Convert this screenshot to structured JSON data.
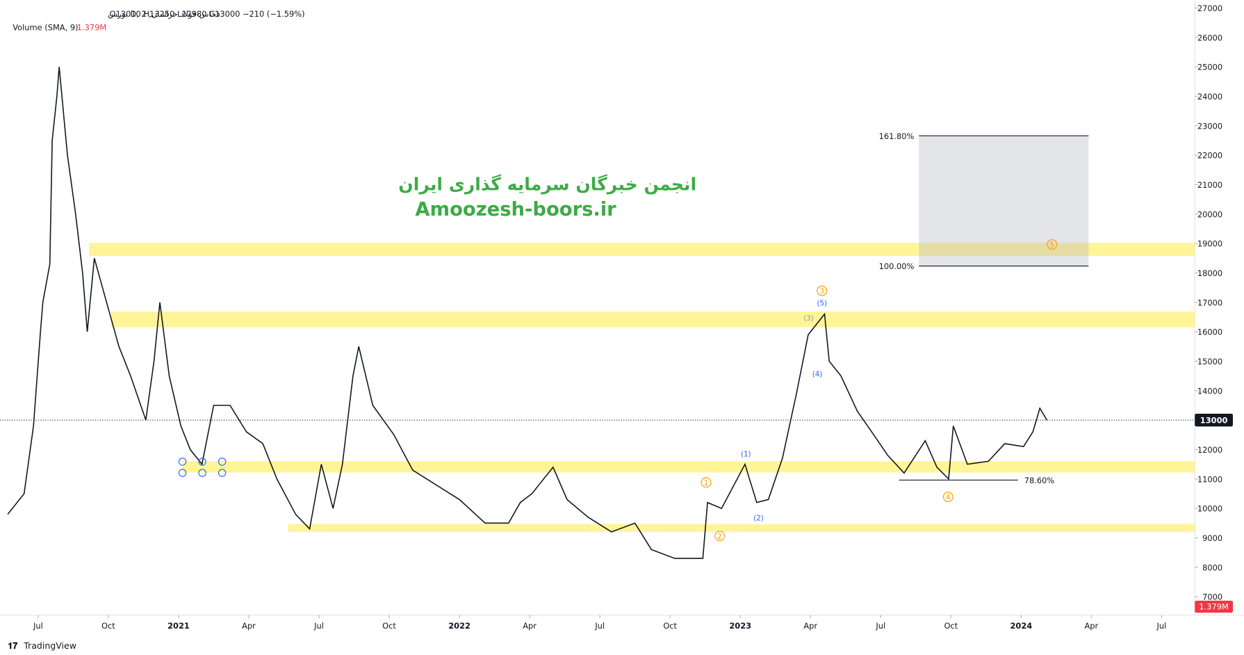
{
  "chart_data": {
    "type": "line",
    "symbol": "فخاس-فولاد خراسان, 2 ,D بورس",
    "ohlc": "O13010  H13250  L12980  C13000  −210 (−1.59%)",
    "volume_label": "Volume (SMA, 9)",
    "volume_value": "1.379M",
    "watermark": [
      "انجمن خبرگان سرمایه گذاری ایران",
      "Amoozesh-boors.ir"
    ],
    "footer": "TradingView",
    "color": "#131722",
    "x": [
      4.7,
      5.4,
      5.8,
      6.1,
      6.2,
      6.5,
      6.6,
      6.8,
      6.9,
      7.25,
      7.6,
      7.9,
      8.1,
      8.4,
      8.75,
      9.1,
      9.45,
      9.95,
      10.6,
      10.95,
      11.2,
      11.6,
      12.1,
      12.5,
      13.0,
      13.5,
      14.2,
      14.9,
      15.6,
      16.2,
      17.0,
      17.6,
      18.1,
      18.6,
      19.0,
      19.45,
      19.7,
      20.3,
      21.2,
      22.0,
      23.0,
      24.0,
      25.1,
      26.1,
      26.6,
      27.1,
      28.0,
      28.6,
      29.5,
      30.5,
      31.5,
      32.2,
      33.2,
      34.4,
      34.6,
      35.2,
      36.2,
      36.7,
      37.2,
      37.8,
      38.4,
      38.9,
      39.6,
      39.8,
      40.3,
      41.0,
      41.7,
      42.3,
      43.0,
      43.9,
      44.4,
      44.9,
      45.1,
      45.7,
      46.6,
      47.3,
      48.1,
      48.5,
      48.8,
      49.1
    ],
    "values": [
      9800,
      10500,
      12800,
      16000,
      17000,
      18300,
      22500,
      24000,
      25000,
      22000,
      20000,
      18000,
      16000,
      18500,
      17500,
      16500,
      15500,
      14500,
      13000,
      15000,
      17000,
      14500,
      12800,
      12000,
      11500,
      13500,
      13500,
      12600,
      12200,
      11000,
      9800,
      9300,
      11500,
      10000,
      11500,
      14500,
      15500,
      13500,
      12500,
      11300,
      10800,
      10300,
      9500,
      9500,
      10200,
      10500,
      11400,
      10300,
      9700,
      9200,
      9500,
      8600,
      8300,
      8300,
      10200,
      10000,
      11500,
      10200,
      10300,
      11700,
      13900,
      15900,
      16600,
      15000,
      14500,
      13300,
      12500,
      11800,
      11200,
      12300,
      11400,
      11000,
      12800,
      11500,
      11600,
      12200,
      12100,
      12600,
      13400,
      13000
    ],
    "last_price": 13000,
    "xlim": [
      4.37,
      55.42
    ],
    "ylim": [
      6376,
      27271
    ],
    "xticks": [
      {
        "value": 6,
        "label": "Jul"
      },
      {
        "value": 9,
        "label": "Oct"
      },
      {
        "value": 12,
        "label": "2021"
      },
      {
        "value": 15,
        "label": "Apr"
      },
      {
        "value": 18,
        "label": "Jul"
      },
      {
        "value": 21,
        "label": "Oct"
      },
      {
        "value": 24,
        "label": "2022"
      },
      {
        "value": 27,
        "label": "Apr"
      },
      {
        "value": 30,
        "label": "Jul"
      },
      {
        "value": 33,
        "label": "Oct"
      },
      {
        "value": 36,
        "label": "2023"
      },
      {
        "value": 39,
        "label": "Apr"
      },
      {
        "value": 42,
        "label": "Jul"
      },
      {
        "value": 45,
        "label": "Oct"
      },
      {
        "value": 48,
        "label": "2024"
      },
      {
        "value": 51,
        "label": "Apr"
      },
      {
        "value": 54,
        "label": "Jul"
      }
    ],
    "yticks": [
      7000,
      8000,
      9000,
      10000,
      11000,
      12000,
      13000,
      14000,
      15000,
      16000,
      17000,
      18000,
      19000,
      20000,
      21000,
      22000,
      23000,
      24000,
      25000,
      26000,
      27000
    ],
    "zones": [
      {
        "from": 18580,
        "to": 19020,
        "start": 8.17
      },
      {
        "from": 16150,
        "to": 16690,
        "start": 9.12
      },
      {
        "from": 11220,
        "to": 11600,
        "start": 12.17
      },
      {
        "from": 9200,
        "to": 9470,
        "start": 16.68
      }
    ],
    "fib": {
      "x0": 43.63,
      "x1": 50.88,
      "levels": [
        {
          "value": 22658,
          "label": "161.80%"
        },
        {
          "value": 18235,
          "label": "100.00%"
        }
      ]
    },
    "level_line": {
      "value": 10962,
      "label": "78.60%",
      "x0": 42.78,
      "x1": 47.86
    },
    "annotations": [
      {
        "text": "1",
        "x": 34.54,
        "y": 10880,
        "style": "orange"
      },
      {
        "text": "2",
        "x": 35.12,
        "y": 9062,
        "style": "orange"
      },
      {
        "text": "3",
        "x": 39.49,
        "y": 17393,
        "style": "orange"
      },
      {
        "text": "4",
        "x": 44.88,
        "y": 10392,
        "style": "orange"
      },
      {
        "text": "5",
        "x": 49.32,
        "y": 18967,
        "style": "orange"
      },
      {
        "text": "(1)",
        "x": 36.24,
        "y": 11858,
        "style": "blue"
      },
      {
        "text": "(2)",
        "x": 36.78,
        "y": 9687,
        "style": "blue"
      },
      {
        "text": "(4)",
        "x": 39.29,
        "y": 14571,
        "style": "blue"
      },
      {
        "text": "(5)",
        "x": 39.49,
        "y": 16986,
        "style": "blue"
      },
      {
        "text": "(3)",
        "x": 38.92,
        "y": 16471,
        "style": "gray"
      }
    ]
  }
}
